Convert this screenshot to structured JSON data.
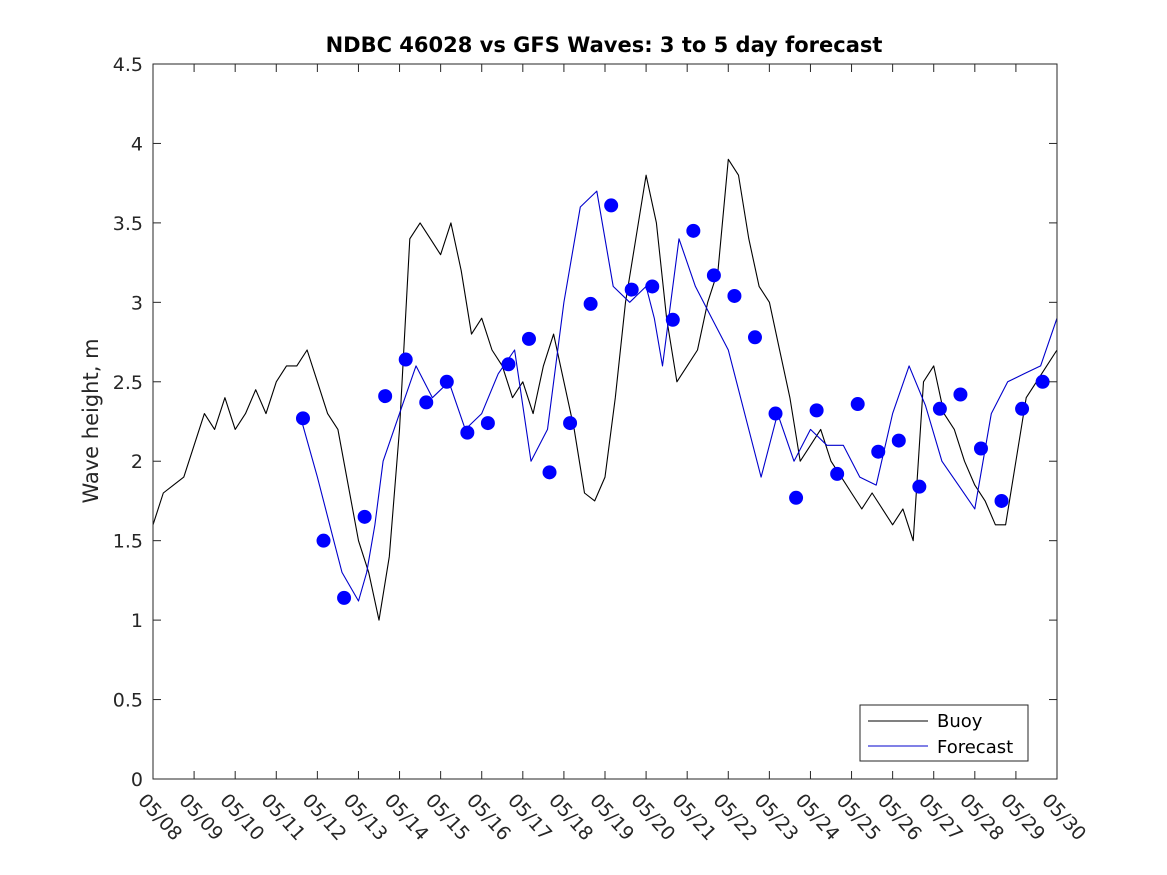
{
  "chart_data": {
    "type": "line",
    "title": "NDBC 46028 vs GFS Waves: 3 to 5 day forecast",
    "xlabel": "",
    "ylabel": "Wave height, m",
    "ylim": [
      0,
      4.5
    ],
    "yticks": [
      0,
      0.5,
      1,
      1.5,
      2,
      2.5,
      3,
      3.5,
      4,
      4.5
    ],
    "ytick_labels": [
      "0",
      "0.5",
      "1",
      "1.5",
      "2",
      "2.5",
      "3",
      "3.5",
      "4",
      "4.5"
    ],
    "xlim_days": [
      0,
      22
    ],
    "xtick_labels": [
      "05/08",
      "05/09",
      "05/10",
      "05/11",
      "05/12",
      "05/13",
      "05/14",
      "05/15",
      "05/16",
      "05/17",
      "05/18",
      "05/19",
      "05/20",
      "05/21",
      "05/22",
      "05/23",
      "05/24",
      "05/25",
      "05/26",
      "05/27",
      "05/28",
      "05/29",
      "05/30"
    ],
    "grid": false,
    "legend_position": "bottom-right",
    "series": [
      {
        "name": "Buoy",
        "color": "#000000",
        "style": "line",
        "x": [
          0,
          0.25,
          0.5,
          0.75,
          1,
          1.25,
          1.5,
          1.75,
          2,
          2.25,
          2.5,
          2.75,
          3,
          3.25,
          3.5,
          3.75,
          4,
          4.25,
          4.5,
          4.75,
          5,
          5.25,
          5.5,
          5.75,
          6,
          6.25,
          6.5,
          6.75,
          7,
          7.25,
          7.5,
          7.75,
          8,
          8.25,
          8.5,
          8.75,
          9,
          9.25,
          9.5,
          9.75,
          10,
          10.25,
          10.5,
          10.75,
          11,
          11.25,
          11.5,
          11.75,
          12,
          12.25,
          12.5,
          12.75,
          13,
          13.25,
          13.5,
          13.75,
          14,
          14.25,
          14.5,
          14.75,
          15,
          15.25,
          15.5,
          15.75,
          16,
          16.25,
          16.5,
          16.75,
          17,
          17.25,
          17.5,
          17.75,
          18,
          18.25,
          18.5,
          18.75,
          19,
          19.25,
          19.5,
          19.75,
          20,
          20.25,
          20.5,
          20.75,
          21,
          21.25,
          21.5,
          21.75,
          22
        ],
        "y": [
          1.6,
          1.8,
          1.85,
          1.9,
          2.1,
          2.3,
          2.2,
          2.4,
          2.2,
          2.3,
          2.45,
          2.3,
          2.5,
          2.6,
          2.6,
          2.7,
          2.5,
          2.3,
          2.2,
          1.85,
          1.5,
          1.3,
          1.0,
          1.4,
          2.2,
          3.4,
          3.5,
          3.4,
          3.3,
          3.5,
          3.2,
          2.8,
          2.9,
          2.7,
          2.6,
          2.4,
          2.5,
          2.3,
          2.6,
          2.8,
          2.5,
          2.2,
          1.8,
          1.75,
          1.9,
          2.4,
          3.0,
          3.4,
          3.8,
          3.5,
          2.9,
          2.5,
          2.6,
          2.7,
          3.0,
          3.2,
          3.9,
          3.8,
          3.4,
          3.1,
          3.0,
          2.7,
          2.4,
          2.0,
          2.1,
          2.2,
          2.0,
          1.9,
          1.8,
          1.7,
          1.8,
          1.7,
          1.6,
          1.7,
          1.5,
          2.5,
          2.6,
          2.3,
          2.2,
          2.0,
          1.85,
          1.75,
          1.6,
          1.6,
          2.0,
          2.4,
          2.5,
          2.6,
          2.7
        ]
      },
      {
        "name": "Forecast",
        "color": "#0000cc",
        "style": "line",
        "x": [
          3.6,
          4.0,
          4.4,
          4.6,
          5.0,
          5.2,
          5.4,
          5.6,
          6.0,
          6.4,
          6.8,
          7.2,
          7.6,
          8.0,
          8.4,
          8.8,
          9.2,
          9.6,
          10.0,
          10.4,
          10.8,
          11.2,
          11.6,
          12.0,
          12.2,
          12.4,
          12.8,
          13.2,
          13.6,
          14.0,
          14.4,
          14.8,
          15.2,
          15.6,
          16.0,
          16.4,
          16.8,
          17.2,
          17.6,
          18.0,
          18.4,
          18.8,
          19.2,
          19.6,
          20.0,
          20.4,
          20.8,
          21.2,
          21.6,
          22.0
        ],
        "y": [
          2.27,
          1.9,
          1.5,
          1.3,
          1.12,
          1.3,
          1.6,
          2.0,
          2.3,
          2.6,
          2.4,
          2.5,
          2.2,
          2.3,
          2.55,
          2.7,
          2.0,
          2.2,
          3.0,
          3.6,
          3.7,
          3.1,
          3.0,
          3.1,
          2.9,
          2.6,
          3.4,
          3.1,
          2.9,
          2.7,
          2.3,
          1.9,
          2.3,
          2.0,
          2.2,
          2.1,
          2.1,
          1.9,
          1.85,
          2.3,
          2.6,
          2.35,
          2.0,
          1.85,
          1.7,
          2.3,
          2.5,
          2.55,
          2.6,
          2.9
        ]
      }
    ],
    "forecast_markers": {
      "name": "Forecast",
      "color": "#0000ff",
      "style": "marker",
      "x": [
        3.65,
        4.15,
        4.65,
        5.15,
        5.65,
        6.15,
        6.65,
        7.15,
        7.65,
        8.15,
        8.65,
        9.15,
        9.65,
        10.15,
        10.65,
        11.15,
        11.65,
        12.15,
        12.65,
        13.15,
        13.65,
        14.15,
        14.65,
        15.15,
        15.65,
        16.15,
        16.65,
        17.15,
        17.65,
        18.15,
        18.65,
        19.15,
        19.65,
        20.15,
        20.65,
        21.15,
        21.65
      ],
      "y": [
        2.27,
        1.5,
        1.14,
        1.65,
        2.41,
        2.64,
        2.37,
        2.5,
        2.18,
        2.24,
        2.61,
        2.77,
        1.93,
        2.24,
        2.99,
        3.61,
        3.08,
        3.1,
        2.89,
        3.45,
        3.17,
        3.04,
        2.78,
        2.3,
        1.77,
        2.32,
        1.92,
        2.36,
        2.06,
        2.13,
        1.84,
        2.33,
        2.42,
        2.08,
        1.75,
        2.33,
        2.5
      ]
    }
  }
}
